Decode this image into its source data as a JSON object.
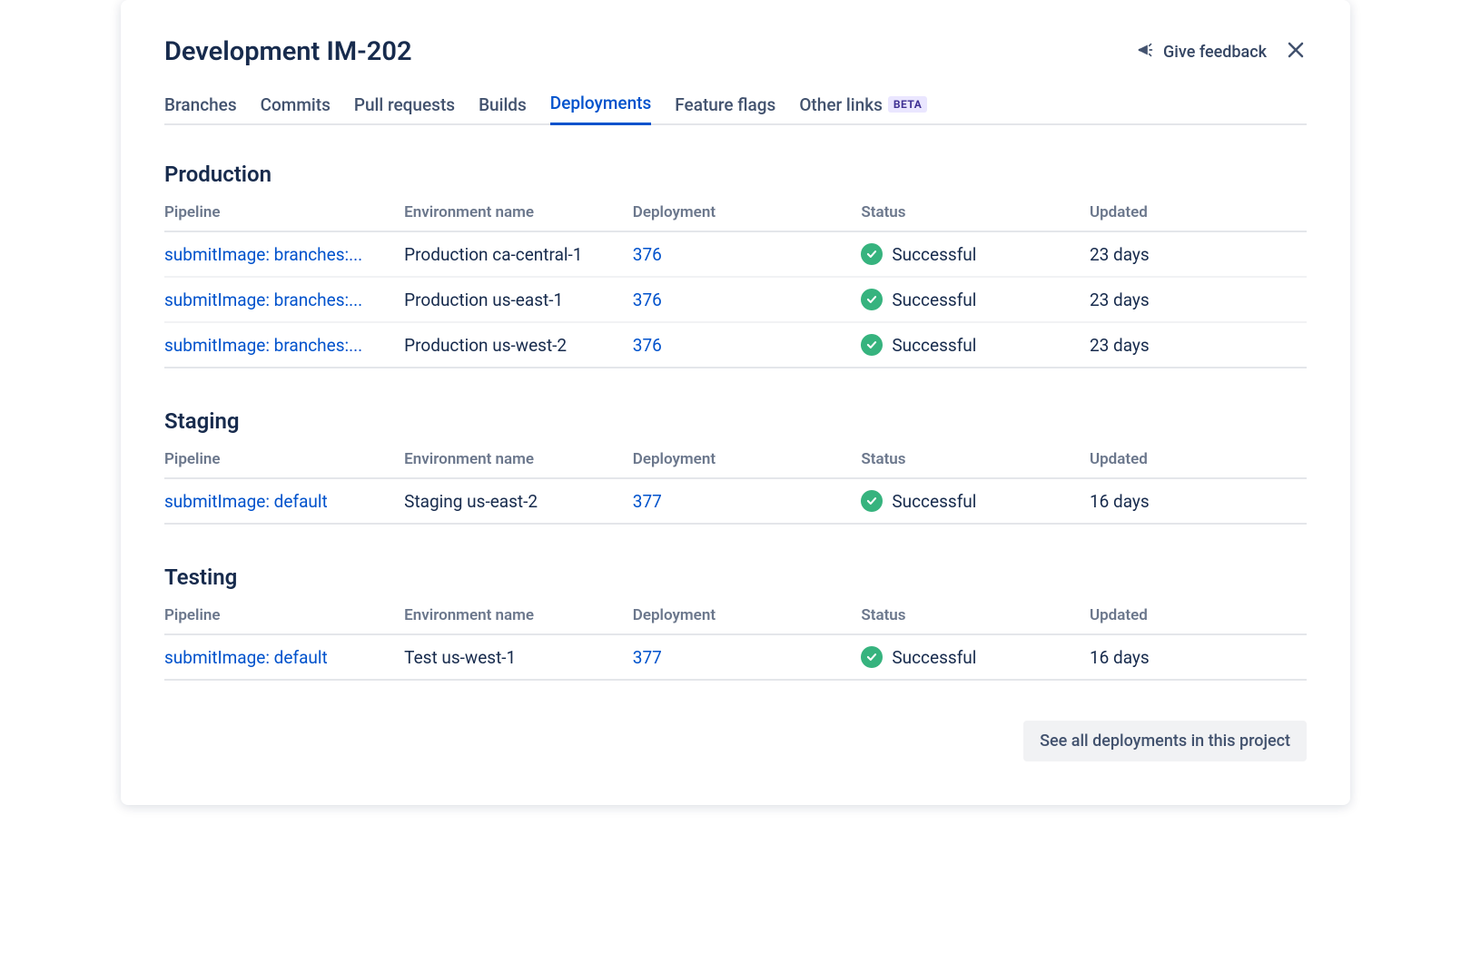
{
  "header": {
    "title": "Development IM-202",
    "feedback_label": "Give feedback"
  },
  "tabs": [
    {
      "label": "Branches",
      "active": false
    },
    {
      "label": "Commits",
      "active": false
    },
    {
      "label": "Pull requests",
      "active": false
    },
    {
      "label": "Builds",
      "active": false
    },
    {
      "label": "Deployments",
      "active": true
    },
    {
      "label": "Feature flags",
      "active": false
    },
    {
      "label": "Other links",
      "active": false,
      "badge": "BETA"
    }
  ],
  "columns": {
    "pipeline": "Pipeline",
    "environment": "Environment name",
    "deployment": "Deployment",
    "status": "Status",
    "updated": "Updated"
  },
  "colors": {
    "link": "#0052cc",
    "text": "#172b4d",
    "muted": "#6b778c",
    "success_bg": "#36b37e",
    "badge_bg": "#eae6ff",
    "badge_text": "#403294",
    "border": "#e4e6ea"
  },
  "sections": [
    {
      "title": "Production",
      "rows": [
        {
          "pipeline": "submitImage: branches:...",
          "environment": "Production ca-central-1",
          "deployment": "376",
          "status": "Successful",
          "updated": "23 days"
        },
        {
          "pipeline": "submitImage: branches:...",
          "environment": "Production us-east-1",
          "deployment": "376",
          "status": "Successful",
          "updated": "23 days"
        },
        {
          "pipeline": "submitImage: branches:...",
          "environment": "Production us-west-2",
          "deployment": "376",
          "status": "Successful",
          "updated": "23 days"
        }
      ]
    },
    {
      "title": "Staging",
      "rows": [
        {
          "pipeline": "submitImage: default",
          "environment": "Staging us-east-2",
          "deployment": "377",
          "status": "Successful",
          "updated": "16 days"
        }
      ]
    },
    {
      "title": "Testing",
      "rows": [
        {
          "pipeline": "submitImage: default",
          "environment": "Test us-west-1",
          "deployment": "377",
          "status": "Successful",
          "updated": "16 days"
        }
      ]
    }
  ],
  "footer": {
    "see_all_label": "See all deployments in this project"
  }
}
